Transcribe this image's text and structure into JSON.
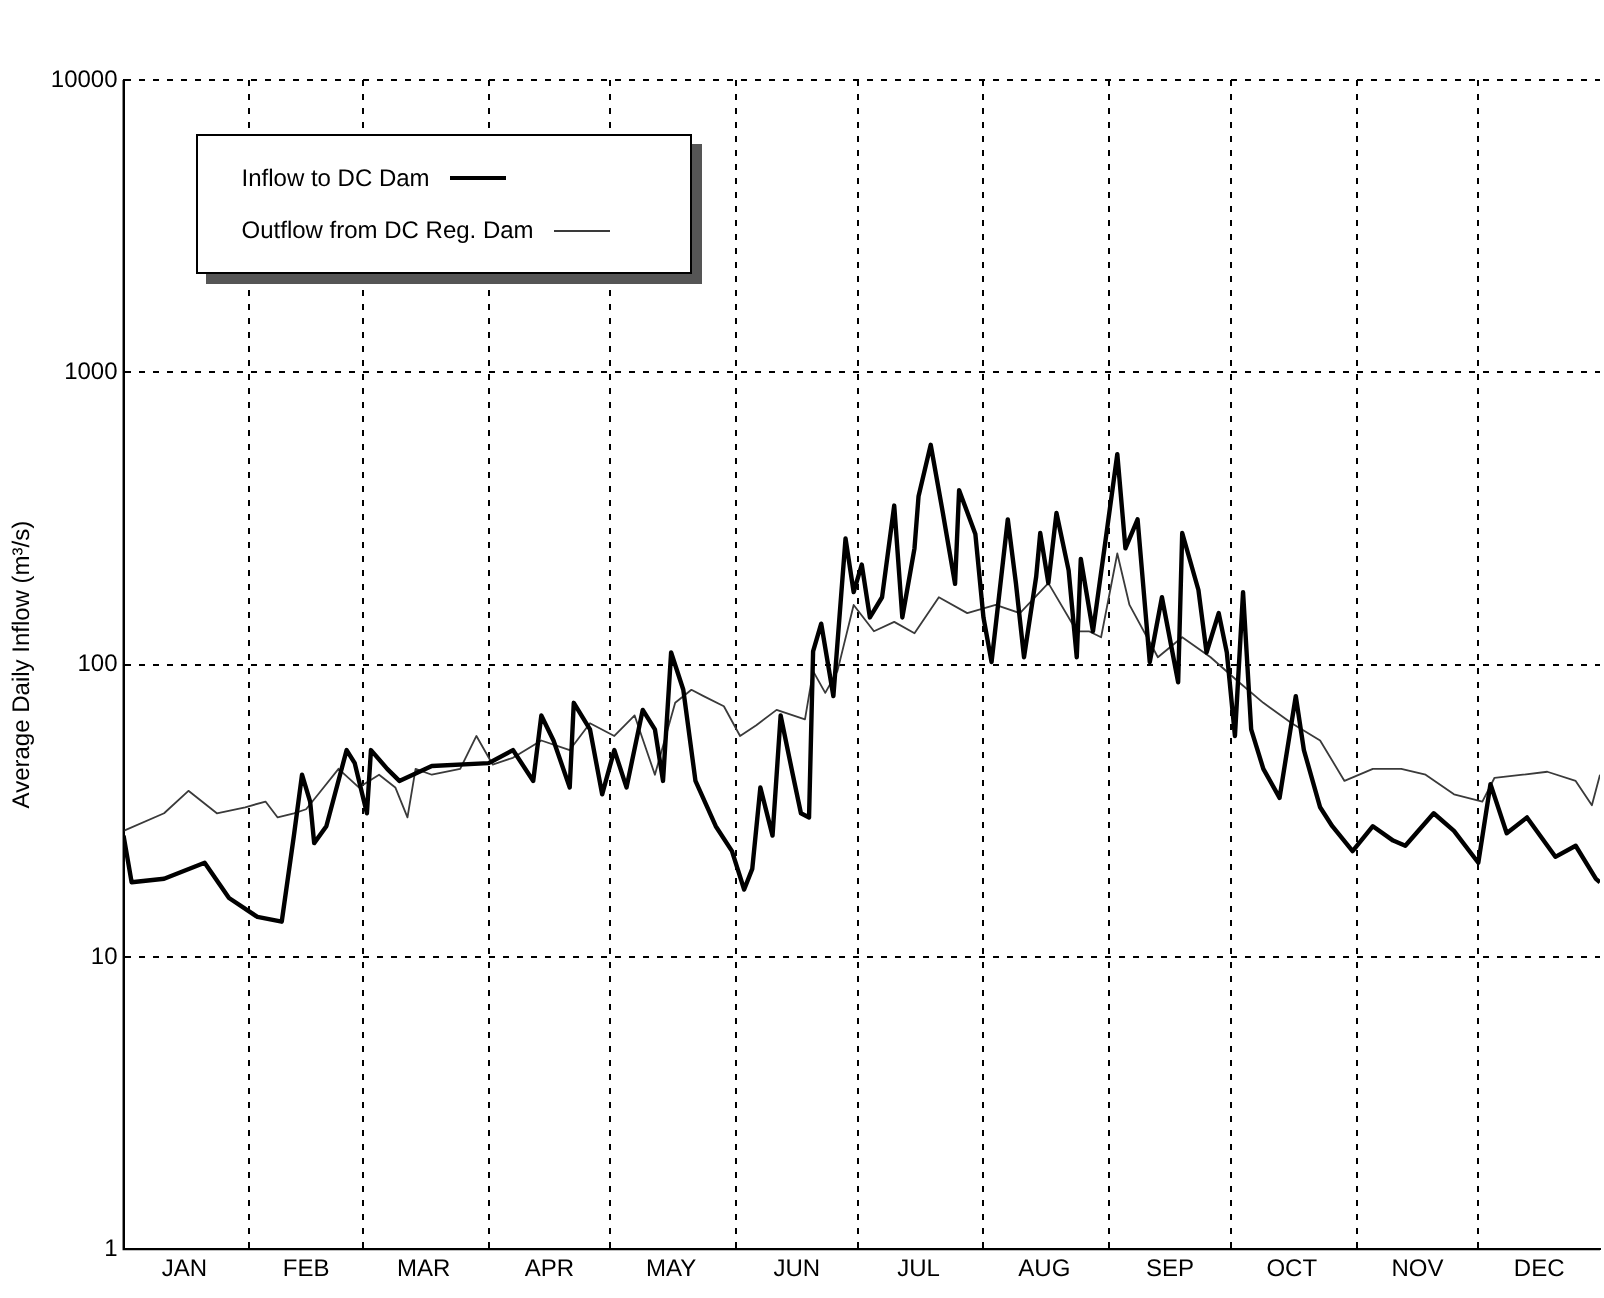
{
  "chart_data": {
    "type": "line",
    "ylabel": "Average Daily Inflow (m³/s)",
    "log": "y",
    "grid": true,
    "legend": "top left",
    "marker": "none",
    "line_style": "solid",
    "xlim": [
      "--01-01",
      "--12-31"
    ],
    "xticks": [
      {
        "value": "--01-16",
        "label": "JAN"
      },
      {
        "value": "--02-01",
        "label": null
      },
      {
        "value": "--02-15",
        "label": "FEB"
      },
      {
        "value": "--03-01",
        "label": null
      },
      {
        "value": "--03-16",
        "label": "MAR"
      },
      {
        "value": "--04-01",
        "label": null
      },
      {
        "value": "--04-16",
        "label": "APR"
      },
      {
        "value": "--05-01",
        "label": null
      },
      {
        "value": "--05-16",
        "label": "MAY"
      },
      {
        "value": "--06-01",
        "label": null
      },
      {
        "value": "--06-16",
        "label": "JUN"
      },
      {
        "value": "--07-01",
        "label": null
      },
      {
        "value": "--07-16",
        "label": "JUL"
      },
      {
        "value": "--08-01",
        "label": null
      },
      {
        "value": "--08-16",
        "label": "AUG"
      },
      {
        "value": "--09-01",
        "label": null
      },
      {
        "value": "--09-16",
        "label": "SEP"
      },
      {
        "value": "--10-01",
        "label": null
      },
      {
        "value": "--10-16",
        "label": "OCT"
      },
      {
        "value": "--11-01",
        "label": null
      },
      {
        "value": "--11-16",
        "label": "NOV"
      },
      {
        "value": "--12-01",
        "label": null
      },
      {
        "value": "--12-16",
        "label": "DEC"
      }
    ],
    "ylim": [
      1,
      10000
    ],
    "yticks": [
      1,
      10,
      100,
      1000,
      10000
    ],
    "series": [
      {
        "name": "Inflow to DC Dam",
        "color": "#000000",
        "x": [
          "--01-01",
          "--01-03",
          "--01-11",
          "--01-21",
          "--01-27",
          "--02-03",
          "--02-09",
          "--02-12",
          "--02-14",
          "--02-16",
          "--02-17",
          "--02-20",
          "--02-25",
          "--02-27",
          "--03-02",
          "--03-03",
          "--03-07",
          "--03-10",
          "--03-18",
          "--04-01",
          "--04-07",
          "--04-12",
          "--04-14",
          "--04-17",
          "--04-21",
          "--04-22",
          "--04-26",
          "--04-29",
          "--05-02",
          "--05-05",
          "--05-09",
          "--05-12",
          "--05-14",
          "--05-16",
          "--05-19",
          "--05-22",
          "--05-27",
          "--05-31",
          "--06-03",
          "--06-05",
          "--06-07",
          "--06-10",
          "--06-12",
          "--06-15",
          "--06-17",
          "--06-19",
          "--06-20",
          "--06-22",
          "--06-25",
          "--06-28",
          "--06-30",
          "--07-02",
          "--07-04",
          "--07-07",
          "--07-10",
          "--07-12",
          "--07-15",
          "--07-16",
          "--07-19",
          "--07-22",
          "--07-25",
          "--07-26",
          "--07-30",
          "--08-01",
          "--08-03",
          "--08-07",
          "--08-09",
          "--08-11",
          "--08-14",
          "--08-15",
          "--08-17",
          "--08-19",
          "--08-22",
          "--08-24",
          "--08-25",
          "--08-28",
          "--08-31",
          "--09-03",
          "--09-05",
          "--09-08",
          "--09-11",
          "--09-14",
          "--09-18",
          "--09-19",
          "--09-23",
          "--09-25",
          "--09-28",
          "--09-30",
          "--10-02",
          "--10-04",
          "--10-06",
          "--10-09",
          "--10-13",
          "--10-17",
          "--10-19",
          "--10-23",
          "--10-26",
          "--10-31",
          "--11-05",
          "--11-10",
          "--11-13",
          "--11-20",
          "--11-25",
          "--12-01",
          "--12-04",
          "--12-08",
          "--12-13",
          "--12-20",
          "--12-25",
          "--12-30",
          "--12-31"
        ],
        "values": [
          26,
          18,
          18.5,
          21,
          15.9,
          13.7,
          13.2,
          26,
          42,
          34,
          24.5,
          28,
          51,
          46,
          31,
          51,
          44,
          40,
          45,
          46,
          51,
          40,
          67,
          55,
          38,
          74,
          60,
          36,
          51,
          38,
          70,
          60,
          40,
          110,
          82,
          40,
          28,
          23,
          17,
          20,
          38,
          26,
          67,
          42,
          31,
          30,
          111,
          138,
          78,
          270,
          177,
          220,
          145,
          170,
          350,
          145,
          250,
          377,
          565,
          330,
          189,
          395,
          280,
          145,
          102,
          314,
          190,
          106,
          200,
          282,
          190,
          330,
          210,
          106,
          230,
          130,
          260,
          525,
          250,
          314,
          102,
          170,
          87,
          282,
          180,
          110,
          150,
          110,
          57,
          177,
          60,
          44,
          35,
          78,
          51,
          32.5,
          28,
          23,
          28,
          25,
          24,
          31,
          27,
          21,
          39,
          26.5,
          30,
          22,
          24,
          18.5,
          18
        ]
      },
      {
        "name": "Outflow from DC Reg. Dam",
        "color": "#3a3a3a",
        "x": [
          "--01-01",
          "--01-11",
          "--01-17",
          "--01-24",
          "--01-31",
          "--02-05",
          "--02-08",
          "--02-12",
          "--02-15",
          "--02-18",
          "--02-23",
          "--02-28",
          "--03-05",
          "--03-09",
          "--03-12",
          "--03-14",
          "--03-18",
          "--03-25",
          "--03-29",
          "--04-02",
          "--04-07",
          "--04-14",
          "--04-21",
          "--04-26",
          "--05-02",
          "--05-07",
          "--05-12",
          "--05-17",
          "--05-21",
          "--05-24",
          "--05-29",
          "--06-02",
          "--06-06",
          "--06-11",
          "--06-18",
          "--06-20",
          "--06-23",
          "--06-26",
          "--06-30",
          "--07-05",
          "--07-10",
          "--07-15",
          "--07-21",
          "--07-28",
          "--08-04",
          "--08-10",
          "--08-17",
          "--08-24",
          "--08-27",
          "--08-30",
          "--09-03",
          "--09-06",
          "--09-13",
          "--09-19",
          "--09-26",
          "--10-03",
          "--10-09",
          "--10-16",
          "--10-23",
          "--10-29",
          "--11-05",
          "--11-12",
          "--11-18",
          "--11-25",
          "--12-02",
          "--12-05",
          "--12-12",
          "--12-18",
          "--12-25",
          "--12-29",
          "--12-31"
        ],
        "values": [
          27,
          31,
          37,
          31,
          32.5,
          34,
          30,
          31,
          32,
          36,
          44,
          38,
          42,
          38,
          30,
          44,
          42,
          44,
          57,
          45.5,
          48,
          55,
          51,
          63,
          57,
          67,
          42,
          74,
          82,
          78,
          72,
          57,
          62,
          70,
          65,
          95,
          80,
          95,
          160,
          130,
          140,
          128,
          170,
          150,
          160,
          150,
          190,
          130,
          130,
          124,
          240,
          160,
          106,
          124,
          106,
          87,
          74,
          63,
          55,
          40,
          44,
          44,
          42,
          36,
          34,
          41,
          42,
          43,
          40,
          33,
          42
        ]
      }
    ]
  }
}
